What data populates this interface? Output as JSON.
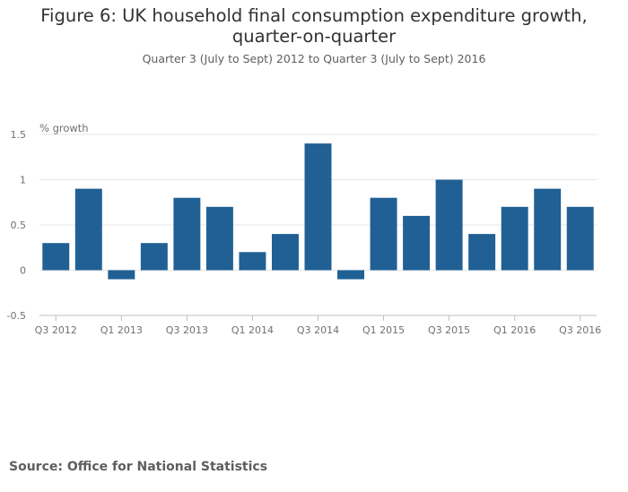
{
  "chart_data": {
    "type": "bar",
    "title": "Figure 6: UK household final consumption expenditure growth, quarter-on-quarter",
    "subtitle": "Quarter 3 (July to Sept) 2012 to Quarter 3 (July to Sept) 2016",
    "ylabel": "% growth",
    "xlabel": "",
    "ylim": [
      -0.5,
      1.5
    ],
    "yticks": [
      "1.5",
      "1",
      "0.5",
      "0",
      "-0.5"
    ],
    "ytick_values": [
      1.5,
      1,
      0.5,
      0,
      -0.5
    ],
    "categories": [
      "Q3 2012",
      "Q4 2012",
      "Q1 2013",
      "Q2 2013",
      "Q3 2013",
      "Q4 2013",
      "Q1 2014",
      "Q2 2014",
      "Q3 2014",
      "Q4 2014",
      "Q1 2015",
      "Q2 2015",
      "Q3 2015",
      "Q4 2015",
      "Q1 2016",
      "Q2 2016",
      "Q3 2016"
    ],
    "values": [
      0.3,
      0.9,
      -0.1,
      0.3,
      0.8,
      0.7,
      0.2,
      0.4,
      1.4,
      -0.1,
      0.8,
      0.6,
      1.0,
      0.4,
      0.7,
      0.9,
      0.7
    ],
    "xtick_labels": [
      "Q3 2012",
      "Q1 2013",
      "Q3 2013",
      "Q1 2014",
      "Q3 2014",
      "Q1 2015",
      "Q3 2015",
      "Q1 2016",
      "Q3 2016"
    ],
    "grid": true,
    "bar_color": "#206095"
  },
  "footer": {
    "source": "Source: Office for National Statistics"
  }
}
